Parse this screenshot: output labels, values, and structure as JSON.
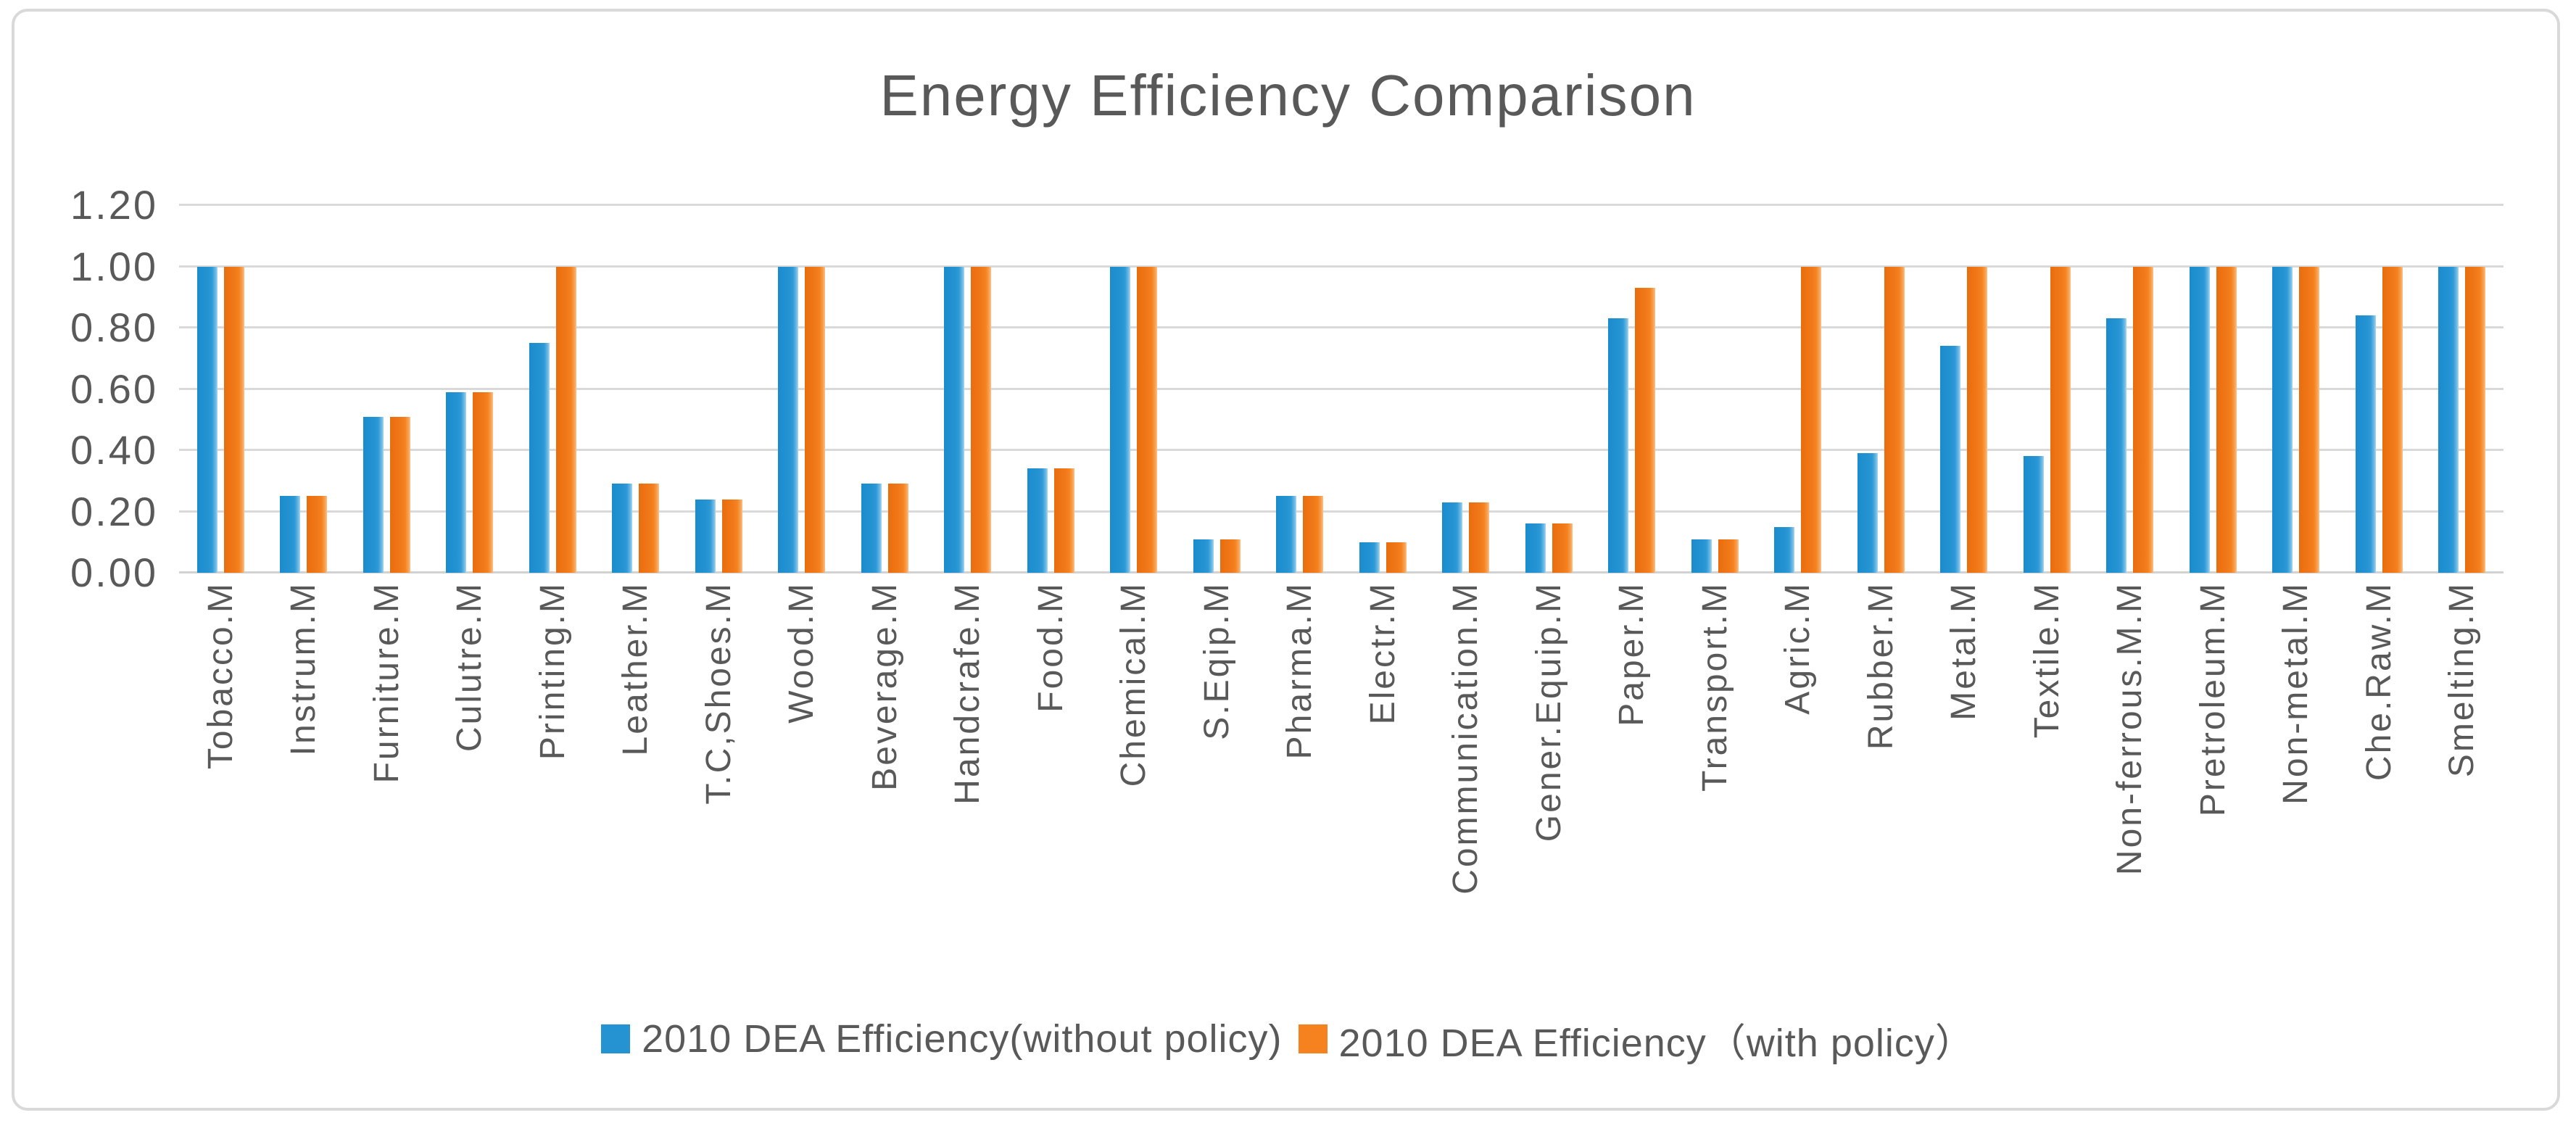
{
  "chart_data": {
    "type": "bar",
    "title": "Energy Efficiency Comparison",
    "categories": [
      "Tobacco.M",
      "Instrum.M",
      "Furniture.M",
      "Culutre.M",
      "Printing.M",
      "Leather.M",
      "T.C,Shoes.M",
      "Wood.M",
      "Beverage.M",
      "Handcrafe.M",
      "Food.M",
      "Chemical.M",
      "S.Eqip.M",
      "Pharma.M",
      "Electr.M",
      "Communication.M",
      "Gener.Equip.M",
      "Paper.M",
      "Transport.M",
      "Agric.M",
      "Rubber.M",
      "Metal.M",
      "Textile.M",
      "Non-ferrous.M.M",
      "Pretroleum.M",
      "Non-metal.M",
      "Che.Raw.M",
      "Smelting.M"
    ],
    "series": [
      {
        "name": "2010 DEA Efficiency(without policy)",
        "color": "#2593d2",
        "values": [
          1.0,
          0.25,
          0.51,
          0.59,
          0.75,
          0.29,
          0.24,
          1.0,
          0.29,
          1.0,
          0.34,
          1.0,
          0.11,
          0.25,
          0.1,
          0.23,
          0.16,
          0.83,
          0.11,
          0.15,
          0.39,
          0.74,
          0.38,
          0.83,
          1.0,
          1.0,
          0.84,
          1.0
        ]
      },
      {
        "name": "2010 DEA Efficiency（with policy）",
        "color": "#f5821f",
        "values": [
          1.0,
          0.25,
          0.51,
          0.59,
          1.0,
          0.29,
          0.24,
          1.0,
          0.29,
          1.0,
          0.34,
          1.0,
          0.11,
          0.25,
          0.1,
          0.23,
          0.16,
          0.93,
          0.11,
          1.0,
          1.0,
          1.0,
          1.0,
          1.0,
          1.0,
          1.0,
          1.0,
          1.0
        ]
      }
    ],
    "xlabel": "",
    "ylabel": "",
    "ylim": [
      0,
      1.2
    ],
    "yticks": [
      0,
      0.2,
      0.4,
      0.6,
      0.8,
      1.0,
      1.2
    ],
    "ytick_labels": [
      "0.00",
      "0.20",
      "0.40",
      "0.60",
      "0.80",
      "1.00",
      "1.20"
    ],
    "grid": true,
    "legend_position": "bottom"
  },
  "colors": {
    "text": "#595959",
    "gridline": "#d9d9d9",
    "frame_border": "#d9d9d9",
    "background": "#ffffff"
  }
}
